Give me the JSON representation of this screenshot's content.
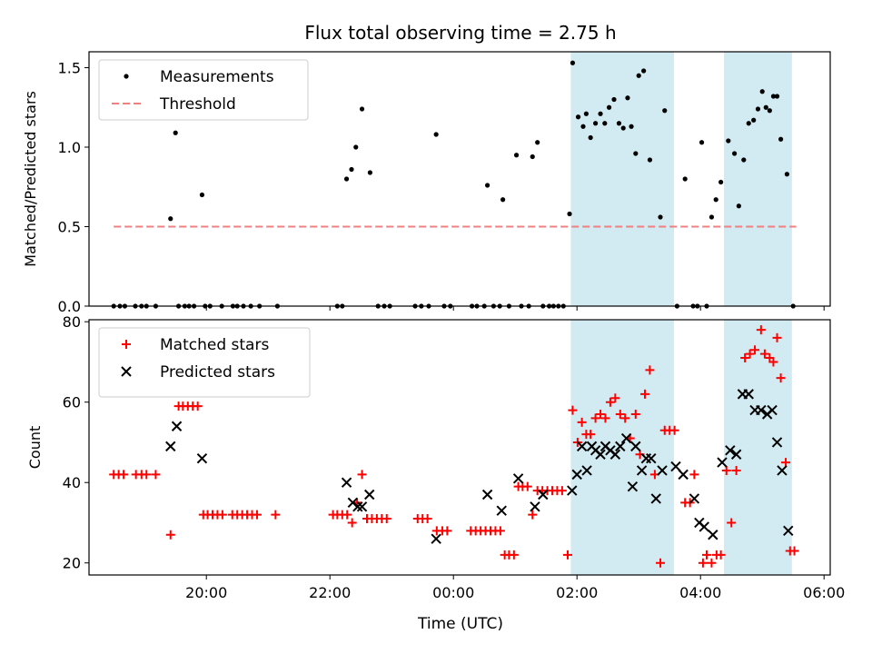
{
  "figure": {
    "title": "Flux total observing time = 2.75 h",
    "xlabel": "Time (UTC)",
    "x_tick_labels": [
      "20:00",
      "22:00",
      "00:00",
      "02:00",
      "04:00",
      "06:00"
    ]
  },
  "chart_data": [
    {
      "type": "scatter",
      "ylabel": "Matched/Predicted stars",
      "xlim_hours": [
        18.1,
        30.1
      ],
      "ylim": [
        0,
        1.6
      ],
      "y_ticks": [
        "0.0",
        "0.5",
        "1.0",
        "1.5"
      ],
      "shaded_intervals_hours": [
        [
          25.9,
          27.57
        ],
        [
          28.38,
          29.48
        ]
      ],
      "shade_color": "#add8e6",
      "legend_position": "upper-left",
      "legend": [
        "Measurements",
        "Threshold"
      ],
      "threshold": {
        "name": "Threshold",
        "value": 0.5,
        "x_range_hours": [
          18.5,
          29.55
        ],
        "color": "#f08080",
        "style": "dashed"
      },
      "series": [
        {
          "name": "Measurements",
          "marker": "dot",
          "color": "#000000",
          "points": [
            [
              18.5,
              0
            ],
            [
              18.6,
              0
            ],
            [
              18.68,
              0
            ],
            [
              18.85,
              0
            ],
            [
              18.95,
              0
            ],
            [
              19.03,
              0
            ],
            [
              19.18,
              0
            ],
            [
              19.42,
              0.55
            ],
            [
              19.5,
              1.09
            ],
            [
              19.55,
              0
            ],
            [
              19.65,
              0
            ],
            [
              19.72,
              0
            ],
            [
              19.8,
              0
            ],
            [
              19.93,
              0.7
            ],
            [
              19.98,
              0
            ],
            [
              20.06,
              0
            ],
            [
              20.25,
              0
            ],
            [
              20.43,
              0
            ],
            [
              20.5,
              0
            ],
            [
              20.6,
              0
            ],
            [
              20.72,
              0
            ],
            [
              20.86,
              0
            ],
            [
              21.15,
              0
            ],
            [
              22.12,
              0
            ],
            [
              22.2,
              0
            ],
            [
              22.27,
              0.8
            ],
            [
              22.35,
              0.86
            ],
            [
              22.42,
              1.0
            ],
            [
              22.52,
              1.24
            ],
            [
              22.65,
              0.84
            ],
            [
              22.78,
              0
            ],
            [
              22.88,
              0
            ],
            [
              22.97,
              0
            ],
            [
              23.38,
              0
            ],
            [
              23.48,
              0
            ],
            [
              23.6,
              0
            ],
            [
              23.72,
              1.08
            ],
            [
              23.85,
              0
            ],
            [
              23.95,
              0
            ],
            [
              24.3,
              0
            ],
            [
              24.38,
              0
            ],
            [
              24.5,
              0
            ],
            [
              24.55,
              0.76
            ],
            [
              24.65,
              0
            ],
            [
              24.75,
              0
            ],
            [
              24.8,
              0.67
            ],
            [
              24.9,
              0
            ],
            [
              25.02,
              0.95
            ],
            [
              25.1,
              0
            ],
            [
              25.22,
              0
            ],
            [
              25.28,
              0.94
            ],
            [
              25.36,
              1.03
            ],
            [
              25.45,
              0
            ],
            [
              25.55,
              0
            ],
            [
              25.62,
              0
            ],
            [
              25.7,
              0
            ],
            [
              25.78,
              0
            ],
            [
              25.88,
              0.58
            ],
            [
              25.93,
              1.53
            ],
            [
              26.02,
              1.19
            ],
            [
              26.1,
              1.13
            ],
            [
              26.15,
              1.21
            ],
            [
              26.22,
              1.06
            ],
            [
              26.3,
              1.15
            ],
            [
              26.38,
              1.21
            ],
            [
              26.45,
              1.15
            ],
            [
              26.52,
              1.25
            ],
            [
              26.6,
              1.3
            ],
            [
              26.68,
              1.15
            ],
            [
              26.75,
              1.12
            ],
            [
              26.82,
              1.31
            ],
            [
              26.88,
              1.13
            ],
            [
              26.95,
              0.96
            ],
            [
              27.0,
              1.45
            ],
            [
              27.08,
              1.48
            ],
            [
              27.18,
              0.92
            ],
            [
              27.35,
              0.56
            ],
            [
              27.42,
              1.23
            ],
            [
              27.62,
              0
            ],
            [
              27.75,
              0.8
            ],
            [
              27.88,
              0
            ],
            [
              27.95,
              0
            ],
            [
              28.02,
              1.03
            ],
            [
              28.1,
              0
            ],
            [
              28.18,
              0.56
            ],
            [
              28.25,
              0.67
            ],
            [
              28.33,
              0.78
            ],
            [
              28.45,
              1.04
            ],
            [
              28.55,
              0.96
            ],
            [
              28.62,
              0.63
            ],
            [
              28.7,
              0.92
            ],
            [
              28.78,
              1.15
            ],
            [
              28.86,
              1.17
            ],
            [
              28.93,
              1.24
            ],
            [
              29.0,
              1.35
            ],
            [
              29.06,
              1.25
            ],
            [
              29.12,
              1.23
            ],
            [
              29.18,
              1.32
            ],
            [
              29.24,
              1.32
            ],
            [
              29.3,
              1.05
            ],
            [
              29.4,
              0.83
            ],
            [
              29.5,
              0
            ]
          ]
        }
      ]
    },
    {
      "type": "scatter",
      "ylabel": "Count",
      "xlim_hours": [
        18.1,
        30.1
      ],
      "ylim": [
        17,
        80.5
      ],
      "y_ticks": [
        "20",
        "40",
        "60",
        "80"
      ],
      "shaded_intervals_hours": [
        [
          25.9,
          27.57
        ],
        [
          28.38,
          29.48
        ]
      ],
      "shade_color": "#add8e6",
      "legend_position": "upper-left",
      "legend": [
        "Matched stars",
        "Predicted stars"
      ],
      "series": [
        {
          "name": "Matched stars",
          "marker": "plus",
          "color": "#ff0000",
          "points": [
            [
              18.5,
              42
            ],
            [
              18.58,
              42
            ],
            [
              18.66,
              42
            ],
            [
              18.86,
              42
            ],
            [
              18.95,
              42
            ],
            [
              19.03,
              42
            ],
            [
              19.18,
              42
            ],
            [
              19.42,
              27
            ],
            [
              19.55,
              59
            ],
            [
              19.62,
              59
            ],
            [
              19.7,
              59
            ],
            [
              19.78,
              59
            ],
            [
              19.86,
              59
            ],
            [
              19.95,
              32
            ],
            [
              20.02,
              32
            ],
            [
              20.1,
              32
            ],
            [
              20.18,
              32
            ],
            [
              20.26,
              32
            ],
            [
              20.42,
              32
            ],
            [
              20.5,
              32
            ],
            [
              20.58,
              32
            ],
            [
              20.66,
              32
            ],
            [
              20.74,
              32
            ],
            [
              20.82,
              32
            ],
            [
              21.12,
              32
            ],
            [
              22.05,
              32
            ],
            [
              22.12,
              32
            ],
            [
              22.2,
              32
            ],
            [
              22.28,
              32
            ],
            [
              22.36,
              30
            ],
            [
              22.44,
              35
            ],
            [
              22.52,
              42
            ],
            [
              22.6,
              31
            ],
            [
              22.68,
              31
            ],
            [
              22.76,
              31
            ],
            [
              22.84,
              31
            ],
            [
              22.92,
              31
            ],
            [
              23.42,
              31
            ],
            [
              23.5,
              31
            ],
            [
              23.58,
              31
            ],
            [
              23.73,
              28
            ],
            [
              23.82,
              28
            ],
            [
              23.9,
              28
            ],
            [
              24.28,
              28
            ],
            [
              24.36,
              28
            ],
            [
              24.44,
              28
            ],
            [
              24.52,
              28
            ],
            [
              24.6,
              28
            ],
            [
              24.68,
              28
            ],
            [
              24.76,
              28
            ],
            [
              24.83,
              22
            ],
            [
              24.9,
              22
            ],
            [
              24.98,
              22
            ],
            [
              25.05,
              39
            ],
            [
              25.12,
              39
            ],
            [
              25.2,
              39
            ],
            [
              25.28,
              32
            ],
            [
              25.36,
              38
            ],
            [
              25.44,
              38
            ],
            [
              25.52,
              38
            ],
            [
              25.6,
              38
            ],
            [
              25.68,
              38
            ],
            [
              25.76,
              38
            ],
            [
              25.85,
              22
            ],
            [
              25.93,
              58
            ],
            [
              26.01,
              50
            ],
            [
              26.08,
              55
            ],
            [
              26.15,
              52
            ],
            [
              26.22,
              52
            ],
            [
              26.3,
              56
            ],
            [
              26.38,
              57
            ],
            [
              26.46,
              56
            ],
            [
              26.54,
              60
            ],
            [
              26.62,
              61
            ],
            [
              26.7,
              57
            ],
            [
              26.78,
              56
            ],
            [
              26.86,
              51
            ],
            [
              26.95,
              57
            ],
            [
              27.02,
              47
            ],
            [
              27.1,
              62
            ],
            [
              27.18,
              68
            ],
            [
              27.26,
              42
            ],
            [
              27.35,
              20
            ],
            [
              27.42,
              53
            ],
            [
              27.5,
              53
            ],
            [
              27.58,
              53
            ],
            [
              27.75,
              35
            ],
            [
              27.83,
              35
            ],
            [
              27.9,
              42
            ],
            [
              28.04,
              20
            ],
            [
              28.1,
              22
            ],
            [
              28.18,
              20
            ],
            [
              28.26,
              22
            ],
            [
              28.33,
              22
            ],
            [
              28.42,
              43
            ],
            [
              28.5,
              30
            ],
            [
              28.58,
              43
            ],
            [
              28.72,
              71
            ],
            [
              28.8,
              72
            ],
            [
              28.88,
              73
            ],
            [
              28.98,
              78
            ],
            [
              29.04,
              72
            ],
            [
              29.12,
              71
            ],
            [
              29.18,
              70
            ],
            [
              29.24,
              76
            ],
            [
              29.3,
              66
            ],
            [
              29.38,
              45
            ],
            [
              29.45,
              23
            ],
            [
              29.52,
              23
            ]
          ]
        },
        {
          "name": "Predicted stars",
          "marker": "x",
          "color": "#000000",
          "points": [
            [
              19.42,
              49
            ],
            [
              19.52,
              54
            ],
            [
              19.93,
              46
            ],
            [
              22.27,
              40
            ],
            [
              22.37,
              35
            ],
            [
              22.45,
              34
            ],
            [
              22.52,
              34
            ],
            [
              22.64,
              37
            ],
            [
              23.72,
              26
            ],
            [
              24.55,
              37
            ],
            [
              24.78,
              33
            ],
            [
              25.05,
              41
            ],
            [
              25.32,
              34
            ],
            [
              25.45,
              37
            ],
            [
              25.92,
              38
            ],
            [
              26.0,
              42
            ],
            [
              26.08,
              49
            ],
            [
              26.16,
              43
            ],
            [
              26.24,
              49
            ],
            [
              26.3,
              48
            ],
            [
              26.38,
              47
            ],
            [
              26.46,
              49
            ],
            [
              26.54,
              48
            ],
            [
              26.62,
              47
            ],
            [
              26.7,
              49
            ],
            [
              26.8,
              51
            ],
            [
              26.9,
              39
            ],
            [
              26.95,
              49
            ],
            [
              27.05,
              43
            ],
            [
              27.12,
              46
            ],
            [
              27.2,
              46
            ],
            [
              27.28,
              36
            ],
            [
              27.38,
              43
            ],
            [
              27.6,
              44
            ],
            [
              27.72,
              42
            ],
            [
              27.9,
              36
            ],
            [
              27.98,
              30
            ],
            [
              28.06,
              29
            ],
            [
              28.2,
              27
            ],
            [
              28.35,
              45
            ],
            [
              28.48,
              48
            ],
            [
              28.58,
              47
            ],
            [
              28.68,
              62
            ],
            [
              28.78,
              62
            ],
            [
              28.88,
              58
            ],
            [
              28.98,
              58
            ],
            [
              29.08,
              57
            ],
            [
              29.16,
              58
            ],
            [
              29.24,
              50
            ],
            [
              29.32,
              43
            ],
            [
              29.42,
              28
            ]
          ]
        }
      ]
    }
  ]
}
